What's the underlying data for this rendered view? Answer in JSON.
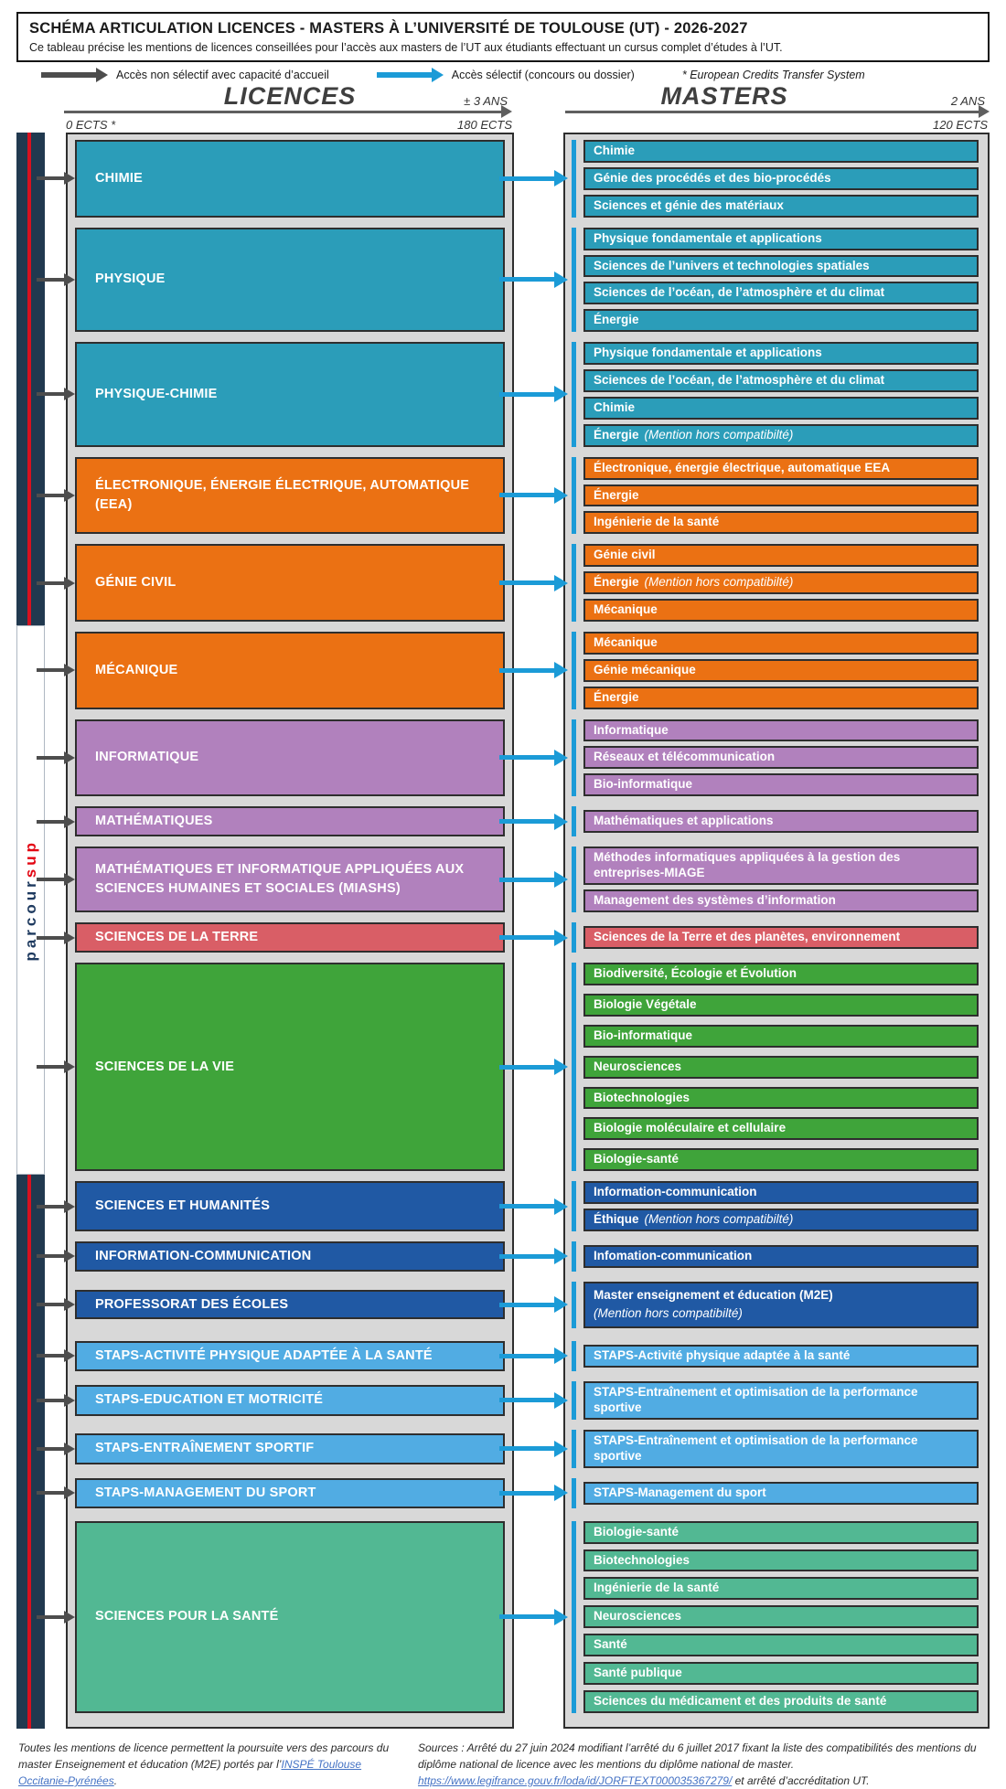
{
  "header": {
    "title": "SCHÉMA ARTICULATION LICENCES - MASTERS À L’UNIVERSITÉ DE TOULOUSE (UT) - 2026-2027",
    "subtitle": "Ce tableau précise les mentions de licences conseillées pour l’accès aux masters de l’UT aux étudiants effectuant un cursus complet d’études à l’UT."
  },
  "legend": {
    "non_selective": "Accès non sélectif avec capacité d’accueil",
    "selective": "Accès sélectif (concours ou dossier)",
    "ects_note": "* European Credits Transfer System"
  },
  "columns": {
    "licences": {
      "title": "LICENCES",
      "duration": "± 3 ANS",
      "ects_start": "0 ECTS *",
      "ects_end": "180 ECTS"
    },
    "masters": {
      "title": "MASTERS",
      "duration": "2 ANS",
      "ects_end": "120 ECTS"
    }
  },
  "parcoursup": {
    "main": "parcour",
    "accent": "sup"
  },
  "colors": {
    "teal": "#2B9DB9",
    "orange": "#EB7113",
    "purple": "#B181BD",
    "red": "#D95E66",
    "green": "#3FA43A",
    "navy_blue": "#2059A4",
    "sky_blue": "#51ACE3",
    "sea_green": "#52B893",
    "arrow_blue": "#1B9BD7",
    "arrow_gray": "#4D4D4D",
    "rail_navy": "#21394F",
    "rail_red": "#D8111F",
    "parcoursup_navy": "#1E3A5F",
    "parcoursup_red": "#E30613",
    "link": "#4472C4"
  },
  "rows": [
    {
      "id": "chimie",
      "color": "teal",
      "licence": "CHIMIE",
      "masters": [
        {
          "text": "Chimie"
        },
        {
          "text": "Génie des procédés et des bio-procédés"
        },
        {
          "text": "Sciences et génie des matériaux"
        }
      ]
    },
    {
      "id": "physique",
      "color": "teal",
      "licence": "PHYSIQUE",
      "masters": [
        {
          "text": "Physique fondamentale et applications"
        },
        {
          "text": "Sciences de l’univers et technologies spatiales"
        },
        {
          "text": "Sciences de l’océan, de l’atmosphère et du climat"
        },
        {
          "text": "Énergie"
        }
      ]
    },
    {
      "id": "physique-chimie",
      "color": "teal",
      "licence": "PHYSIQUE-CHIMIE",
      "masters": [
        {
          "text": "Physique fondamentale et applications"
        },
        {
          "text": "Sciences de l’océan, de l’atmosphère et du climat"
        },
        {
          "text": "Chimie"
        },
        {
          "text": "Énergie",
          "note": "(Mention hors compatibilté)"
        }
      ]
    },
    {
      "id": "eea",
      "color": "orange",
      "licence": "ÉLECTRONIQUE, ÉNERGIE ÉLECTRIQUE, AUTOMATIQUE (EEA)",
      "masters": [
        {
          "text": "Électronique, énergie électrique, automatique EEA"
        },
        {
          "text": "Énergie"
        },
        {
          "text": "Ingénierie de la santé"
        }
      ]
    },
    {
      "id": "genie-civil",
      "color": "orange",
      "licence": "GÉNIE CIVIL",
      "masters": [
        {
          "text": "Génie civil"
        },
        {
          "text": "Énergie",
          "note": "(Mention hors compatibilté)"
        },
        {
          "text": "Mécanique"
        }
      ]
    },
    {
      "id": "mecanique",
      "color": "orange",
      "licence": "MÉCANIQUE",
      "masters": [
        {
          "text": "Mécanique"
        },
        {
          "text": "Génie mécanique"
        },
        {
          "text": "Énergie"
        }
      ]
    },
    {
      "id": "informatique",
      "color": "purple",
      "licence": "INFORMATIQUE",
      "masters": [
        {
          "text": "Informatique"
        },
        {
          "text": "Réseaux et télécommunication"
        },
        {
          "text": "Bio-informatique"
        }
      ]
    },
    {
      "id": "mathematiques",
      "color": "purple",
      "licence": "MATHÉMATIQUES",
      "masters": [
        {
          "text": "Mathématiques et applications"
        }
      ]
    },
    {
      "id": "miashs",
      "color": "purple",
      "licence": "MATHÉMATIQUES ET INFORMATIQUE APPLIQUÉES AUX SCIENCES HUMAINES ET SOCIALES (MIASHS)",
      "masters": [
        {
          "text": "Méthodes informatiques appliquées à la gestion des entreprises-MIAGE",
          "wrap": true
        },
        {
          "text": "Management des systèmes d’information"
        }
      ]
    },
    {
      "id": "sciences-terre",
      "color": "red",
      "licence": "SCIENCES DE LA TERRE",
      "masters": [
        {
          "text": "Sciences de la Terre et des planètes, environnement"
        }
      ]
    },
    {
      "id": "sciences-vie",
      "color": "green",
      "licence": "SCIENCES DE LA VIE",
      "mgap": 9,
      "masters": [
        {
          "text": "Biodiversité, Écologie et Évolution"
        },
        {
          "text": "Biologie Végétale"
        },
        {
          "text": "Bio-informatique"
        },
        {
          "text": "Neurosciences"
        },
        {
          "text": "Biotechnologies"
        },
        {
          "text": "Biologie moléculaire et cellulaire"
        },
        {
          "text": "Biologie-santé"
        }
      ]
    },
    {
      "id": "sciences-humanites",
      "color": "navy_blue",
      "licence": "SCIENCES ET HUMANITÉS",
      "masters": [
        {
          "text": "Information-communication"
        },
        {
          "text": "Éthique",
          "note": "(Mention hors compatibilté)"
        }
      ]
    },
    {
      "id": "information-communication",
      "color": "navy_blue",
      "licence": "INFORMATION-COMMUNICATION",
      "masters": [
        {
          "text": "Infomation-communication"
        }
      ]
    },
    {
      "id": "professorat-ecoles",
      "color": "navy_blue",
      "licence": "PROFESSORAT DES ÉCOLES",
      "lic_fixed": 32,
      "masters": [
        {
          "text": "Master enseignement et éducation (M2E)",
          "note_line": "(Mention hors compatibilté)"
        }
      ]
    },
    {
      "id": "staps-apa",
      "color": "sky_blue",
      "licence": "STAPS-ACTIVITÉ PHYSIQUE ADAPTÉE À LA SANTÉ",
      "gap_before": 14,
      "masters": [
        {
          "text": "STAPS-Activité physique adaptée à la santé"
        }
      ]
    },
    {
      "id": "staps-education-motricite",
      "color": "sky_blue",
      "licence": "STAPS-EDUCATION ET MOTRICITÉ",
      "lic_fixed": 34,
      "masters": [
        {
          "text": "STAPS-Entraînement et optimisation de la performance sportive",
          "wrap": true
        }
      ]
    },
    {
      "id": "staps-entrainement-sportif",
      "color": "sky_blue",
      "licence": "STAPS-ENTRAÎNEMENT SPORTIF",
      "lic_fixed": 34,
      "masters": [
        {
          "text": "STAPS-Entraînement et optimisation de la performance sportive",
          "wrap": true
        }
      ]
    },
    {
      "id": "staps-management-sport",
      "color": "sky_blue",
      "licence": "STAPS-MANAGEMENT DU SPORT",
      "masters": [
        {
          "text": "STAPS-Management du sport"
        }
      ]
    },
    {
      "id": "sciences-pour-la-sante",
      "color": "sea_green",
      "licence": "SCIENCES POUR LA SANTÉ",
      "gap_before": 14,
      "mgap": 6,
      "masters": [
        {
          "text": "Biologie-santé"
        },
        {
          "text": "Biotechnologies"
        },
        {
          "text": "Ingénierie de la santé"
        },
        {
          "text": "Neurosciences"
        },
        {
          "text": "Santé"
        },
        {
          "text": "Santé publique"
        },
        {
          "text": "Sciences du médicament et des produits de santé"
        }
      ]
    }
  ],
  "footers": {
    "left": {
      "pre": "Toutes les mentions de licence permettent la poursuite vers des parcours du master Enseignement et éducation (M2E) portés par l’",
      "link": "INSPÉ Toulouse Occitanie-Pyrénées",
      "post": "."
    },
    "right": {
      "pre": "Sources : Arrêté du 27 juin 2024 modifiant l’arrêté du 6 juillet 2017 fixant la liste des compatibilités des mentions du diplôme national de licence avec les mentions du diplôme national de master. ",
      "link": "https://www.legifrance.gouv.fr/loda/id/JORFTEXT000035367279/",
      "post": " et arrêté d’accréditation UT."
    }
  }
}
